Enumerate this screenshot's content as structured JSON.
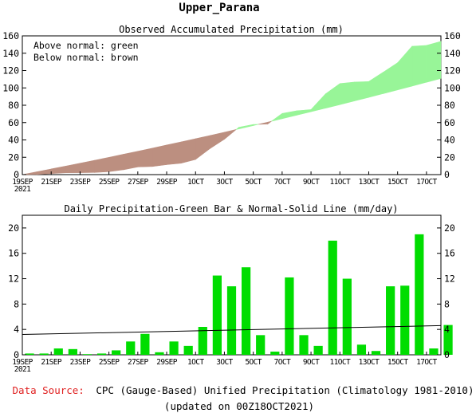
{
  "page": {
    "title": "Upper_Parana",
    "source_label": "Data Source:",
    "source_text": "CPC (Gauge-Based) Unified Precipitation (Climatology 1981-2010)",
    "updated": "(updated on 00Z18OCT2021)"
  },
  "colors": {
    "above": "#98f598",
    "below": "#bc8f80",
    "bar": "#00dd00",
    "normal_line": "#000000",
    "source_label": "#e02020"
  },
  "chart_data": [
    {
      "type": "area",
      "title": "Observed Accumulated Precipitation (mm)",
      "annotations": [
        "Above normal: green",
        "Below normal: brown"
      ],
      "x_tick_labels": [
        "19SEP",
        "21SEP",
        "23SEP",
        "25SEP",
        "27SEP",
        "29SEP",
        "1OCT",
        "3OCT",
        "5OCT",
        "7OCT",
        "9OCT",
        "11OCT",
        "13OCT",
        "15OCT",
        "17OCT"
      ],
      "x_year": "2021",
      "x_tick_positions": [
        0,
        2,
        4,
        6,
        8,
        10,
        12,
        14,
        16,
        18,
        20,
        22,
        24,
        26,
        28
      ],
      "xlim": [
        0,
        29
      ],
      "ylim": [
        0,
        160
      ],
      "y_ticks": [
        0,
        20,
        40,
        60,
        80,
        100,
        120,
        140,
        160
      ],
      "series": [
        {
          "name": "Observed",
          "x": [
            0,
            1,
            2,
            3,
            4,
            5,
            6,
            7,
            8,
            9,
            10,
            11,
            12,
            13,
            14,
            15,
            16,
            17,
            18,
            19,
            20,
            21,
            22,
            23,
            24,
            25,
            26,
            27,
            28,
            29
          ],
          "values": [
            0,
            0.2,
            1.2,
            2.1,
            2.2,
            2.5,
            3.4,
            5.6,
            8.9,
            9.3,
            11.5,
            13.1,
            17.5,
            30.0,
            40.8,
            54.6,
            57.8,
            58.3,
            70.5,
            73.6,
            75.0,
            93.0,
            105.0,
            106.7,
            107.3,
            118.1,
            129.0,
            148.0,
            149.0,
            153.7
          ]
        },
        {
          "name": "Normal",
          "x": [
            0,
            1,
            2,
            3,
            4,
            5,
            6,
            7,
            8,
            9,
            10,
            11,
            12,
            13,
            14,
            15,
            16,
            17,
            18,
            19,
            20,
            21,
            22,
            23,
            24,
            25,
            26,
            27,
            28,
            29
          ],
          "values": [
            0,
            3.2,
            6.5,
            9.8,
            13.1,
            16.5,
            19.9,
            23.4,
            26.9,
            30.5,
            34.1,
            37.7,
            41.4,
            45.1,
            48.9,
            52.7,
            56.6,
            60.5,
            64.5,
            68.5,
            72.5,
            76.6,
            80.7,
            84.9,
            89.1,
            93.4,
            97.7,
            102.1,
            106.5,
            110.9
          ]
        }
      ]
    },
    {
      "type": "bar",
      "title": "Daily Precipitation-Green Bar & Normal-Solid Line (mm/day)",
      "x_tick_labels": [
        "19SEP",
        "21SEP",
        "23SEP",
        "25SEP",
        "27SEP",
        "29SEP",
        "1OCT",
        "3OCT",
        "5OCT",
        "7OCT",
        "9OCT",
        "11OCT",
        "13OCT",
        "15OCT",
        "17OCT"
      ],
      "x_year": "2021",
      "x_tick_positions": [
        0,
        2,
        4,
        6,
        8,
        10,
        12,
        14,
        16,
        18,
        20,
        22,
        24,
        26,
        28
      ],
      "xlim": [
        0,
        29
      ],
      "ylim": [
        0,
        22
      ],
      "y_ticks": [
        0,
        4,
        8,
        12,
        16,
        20
      ],
      "categories": [
        "19SEP",
        "20SEP",
        "21SEP",
        "22SEP",
        "23SEP",
        "24SEP",
        "25SEP",
        "26SEP",
        "27SEP",
        "28SEP",
        "29SEP",
        "30SEP",
        "1OCT",
        "2OCT",
        "3OCT",
        "4OCT",
        "5OCT",
        "6OCT",
        "7OCT",
        "8OCT",
        "9OCT",
        "10OCT",
        "11OCT",
        "12OCT",
        "13OCT",
        "14OCT",
        "15OCT",
        "16OCT",
        "17OCT",
        "18OCT"
      ],
      "values": [
        0.2,
        0.2,
        1.0,
        0.9,
        0.1,
        0.2,
        0.7,
        2.1,
        3.3,
        0.4,
        2.1,
        1.4,
        4.4,
        12.5,
        10.8,
        13.8,
        3.1,
        0.5,
        12.2,
        3.1,
        1.4,
        18.0,
        12.0,
        1.6,
        0.6,
        10.8,
        10.9,
        19.0,
        1.0,
        4.7
      ],
      "series": [
        {
          "name": "Normal",
          "x": [
            0,
            29
          ],
          "values": [
            3.2,
            4.6
          ]
        }
      ]
    }
  ]
}
